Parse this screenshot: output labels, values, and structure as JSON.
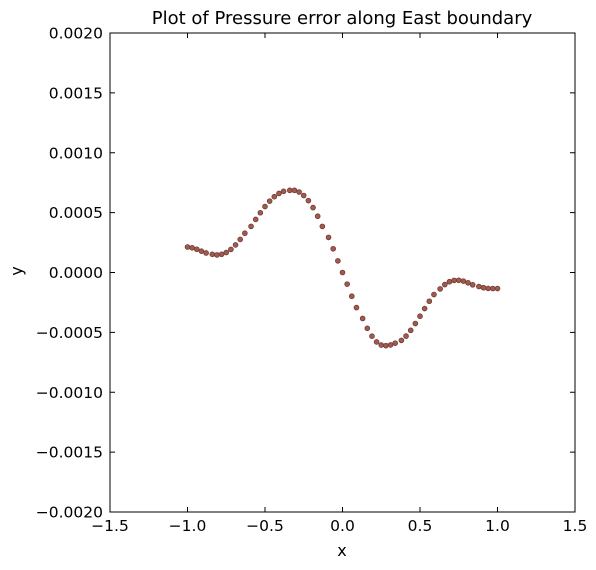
{
  "chart_data": {
    "type": "scatter",
    "title": "Plot of Pressure error along East boundary",
    "xlabel": "x",
    "ylabel": "y",
    "xlim": [
      -1.5,
      1.5
    ],
    "ylim": [
      -0.002,
      0.002
    ],
    "xticks": [
      -1.5,
      -1.0,
      -0.5,
      0.0,
      0.5,
      1.0,
      1.5
    ],
    "xtick_labels": [
      "−1.5",
      "−1.0",
      "−0.5",
      "0.0",
      "0.5",
      "1.0",
      "1.5"
    ],
    "yticks": [
      0.002,
      0.0015,
      0.001,
      0.0005,
      0.0,
      -0.0005,
      -0.001,
      -0.0015,
      -0.002
    ],
    "ytick_labels": [
      "0.0020",
      "0.0015",
      "0.0010",
      "0.0005",
      "0.0000",
      "−0.0005",
      "−0.0010",
      "−0.0015",
      "−0.0020"
    ],
    "grid": false,
    "marker_color": "#a05a50",
    "marker_edge_color": "#6f3a34",
    "points": [
      {
        "x": -1.0,
        "y": 0.000213
      },
      {
        "x": -0.97,
        "y": 0.000206
      },
      {
        "x": -0.94,
        "y": 0.000194
      },
      {
        "x": -0.91,
        "y": 0.000178
      },
      {
        "x": -0.88,
        "y": 0.000163
      },
      {
        "x": -0.84,
        "y": 0.000152
      },
      {
        "x": -0.81,
        "y": 0.000147
      },
      {
        "x": -0.78,
        "y": 0.000152
      },
      {
        "x": -0.75,
        "y": 0.000167
      },
      {
        "x": -0.72,
        "y": 0.000193
      },
      {
        "x": -0.69,
        "y": 0.00023
      },
      {
        "x": -0.66,
        "y": 0.000276
      },
      {
        "x": -0.63,
        "y": 0.000328
      },
      {
        "x": -0.59,
        "y": 0.000385
      },
      {
        "x": -0.56,
        "y": 0.000443
      },
      {
        "x": -0.53,
        "y": 0.000499
      },
      {
        "x": -0.5,
        "y": 0.000551
      },
      {
        "x": -0.47,
        "y": 0.000596
      },
      {
        "x": -0.44,
        "y": 0.000633
      },
      {
        "x": -0.41,
        "y": 0.00066
      },
      {
        "x": -0.38,
        "y": 0.000678
      },
      {
        "x": -0.34,
        "y": 0.000686
      },
      {
        "x": -0.31,
        "y": 0.000686
      },
      {
        "x": -0.28,
        "y": 0.000672
      },
      {
        "x": -0.25,
        "y": 0.000643
      },
      {
        "x": -0.22,
        "y": 0.0006
      },
      {
        "x": -0.19,
        "y": 0.000542
      },
      {
        "x": -0.16,
        "y": 0.00047
      },
      {
        "x": -0.13,
        "y": 0.000385
      },
      {
        "x": -0.09,
        "y": 0.000293
      },
      {
        "x": -0.06,
        "y": 0.000198
      },
      {
        "x": -0.03,
        "y": 9.7e-05
      },
      {
        "x": 0.0,
        "y": 0.0
      },
      {
        "x": 0.03,
        "y": -9.7e-05
      },
      {
        "x": 0.06,
        "y": -0.000198
      },
      {
        "x": 0.09,
        "y": -0.000293
      },
      {
        "x": 0.13,
        "y": -0.000384
      },
      {
        "x": 0.16,
        "y": -0.000466
      },
      {
        "x": 0.19,
        "y": -0.000532
      },
      {
        "x": 0.22,
        "y": -0.00058
      },
      {
        "x": 0.25,
        "y": -0.000606
      },
      {
        "x": 0.28,
        "y": -0.000611
      },
      {
        "x": 0.31,
        "y": -0.000605
      },
      {
        "x": 0.34,
        "y": -0.00059
      },
      {
        "x": 0.38,
        "y": -0.000567
      },
      {
        "x": 0.41,
        "y": -0.000531
      },
      {
        "x": 0.44,
        "y": -0.000483
      },
      {
        "x": 0.47,
        "y": -0.000426
      },
      {
        "x": 0.5,
        "y": -0.000365
      },
      {
        "x": 0.53,
        "y": -0.000301
      },
      {
        "x": 0.56,
        "y": -0.00024
      },
      {
        "x": 0.59,
        "y": -0.000184
      },
      {
        "x": 0.63,
        "y": -0.000137
      },
      {
        "x": 0.66,
        "y": -0.000101
      },
      {
        "x": 0.69,
        "y": -7.7e-05
      },
      {
        "x": 0.72,
        "y": -6.6e-05
      },
      {
        "x": 0.75,
        "y": -6.5e-05
      },
      {
        "x": 0.78,
        "y": -7.2e-05
      },
      {
        "x": 0.81,
        "y": -8.6e-05
      },
      {
        "x": 0.84,
        "y": -0.000103
      },
      {
        "x": 0.88,
        "y": -0.000117
      },
      {
        "x": 0.91,
        "y": -0.000127
      },
      {
        "x": 0.94,
        "y": -0.000133
      },
      {
        "x": 0.97,
        "y": -0.000134
      },
      {
        "x": 1.0,
        "y": -0.000134
      }
    ]
  }
}
